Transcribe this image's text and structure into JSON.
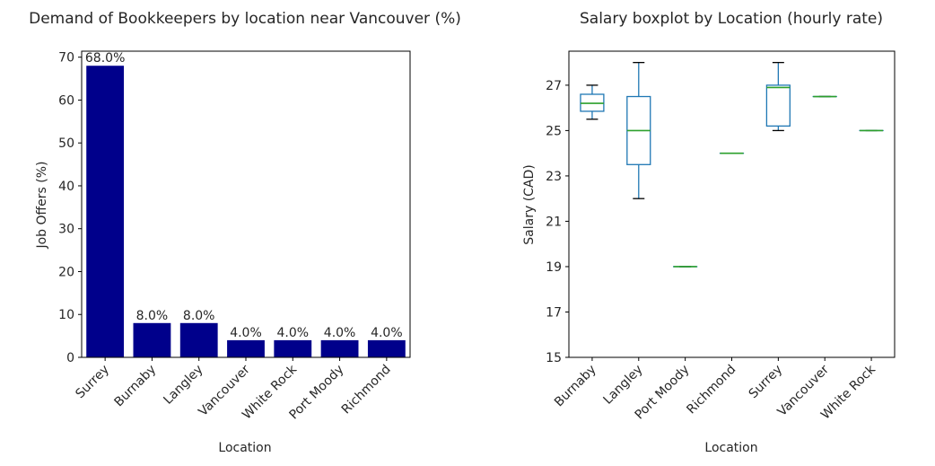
{
  "chart_data": [
    {
      "type": "bar",
      "title": "Demand of Bookkeepers by location near Vancouver (%)",
      "xlabel": "Location",
      "ylabel": "Job Offers (%)",
      "categories": [
        "Surrey",
        "Burnaby",
        "Langley",
        "Vancouver",
        "White Rock",
        "Port Moody",
        "Richmond"
      ],
      "values": [
        68.0,
        8.0,
        8.0,
        4.0,
        4.0,
        4.0,
        4.0
      ],
      "data_labels": [
        "68.0%",
        "8.0%",
        "8.0%",
        "4.0%",
        "4.0%",
        "4.0%",
        "4.0%"
      ],
      "yticks": [
        0,
        10,
        20,
        30,
        40,
        50,
        60,
        70
      ],
      "ylim": [
        0,
        71.4
      ],
      "bar_color": "#00008b",
      "grid": false
    },
    {
      "type": "boxplot",
      "title": "Salary boxplot by Location (hourly rate)",
      "xlabel": "Location",
      "ylabel": "Salary (CAD)",
      "categories": [
        "Burnaby",
        "Langley",
        "Port Moody",
        "Richmond",
        "Surrey",
        "Vancouver",
        "White Rock"
      ],
      "boxes": [
        {
          "whislo": 25.5,
          "q1": 25.85,
          "med": 26.2,
          "q3": 26.6,
          "whishi": 27.0
        },
        {
          "whislo": 22.0,
          "q1": 23.5,
          "med": 25.0,
          "q3": 26.5,
          "whishi": 28.0
        },
        {
          "whislo": 19.0,
          "q1": 19.0,
          "med": 19.0,
          "q3": 19.0,
          "whishi": 19.0
        },
        {
          "whislo": 24.0,
          "q1": 24.0,
          "med": 24.0,
          "q3": 24.0,
          "whishi": 24.0
        },
        {
          "whislo": 25.0,
          "q1": 25.2,
          "med": 26.9,
          "q3": 27.0,
          "whishi": 28.0
        },
        {
          "whislo": 26.5,
          "q1": 26.5,
          "med": 26.5,
          "q3": 26.5,
          "whishi": 26.5
        },
        {
          "whislo": 25.0,
          "q1": 25.0,
          "med": 25.0,
          "q3": 25.0,
          "whishi": 25.0
        }
      ],
      "yticks": [
        15,
        17,
        19,
        21,
        23,
        25,
        27
      ],
      "ylim": [
        15,
        28.5
      ],
      "box_color": "#1f77b4",
      "median_color": "#2ca02c",
      "grid": false
    }
  ]
}
